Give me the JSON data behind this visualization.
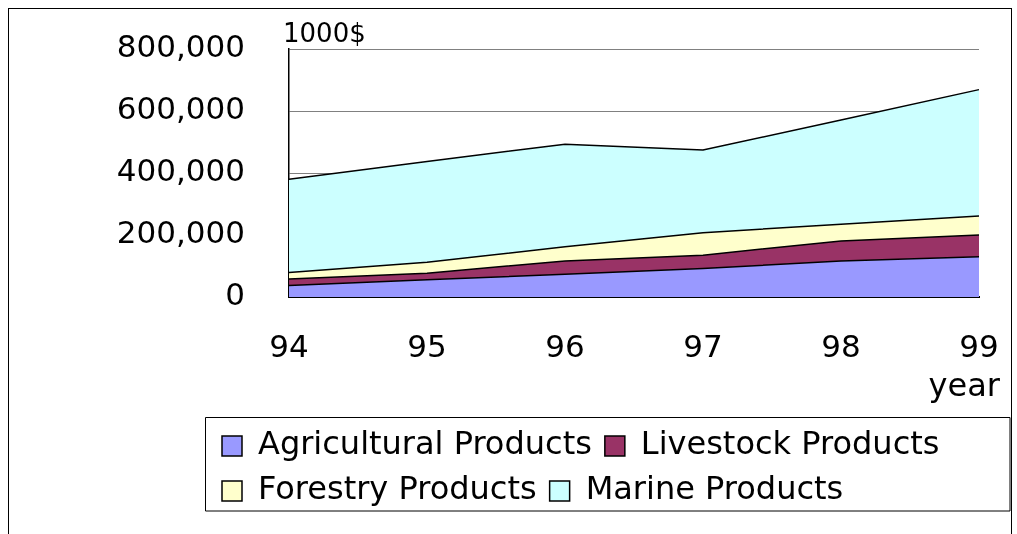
{
  "chart_data": {
    "type": "area",
    "stacked": true,
    "xlabel": "year",
    "ylabel": "1000$",
    "categories": [
      "94",
      "95",
      "96",
      "97",
      "98",
      "99"
    ],
    "series": [
      {
        "name": "Agricultural Products",
        "color": "#9999ff",
        "values": [
          37000,
          56000,
          73000,
          92000,
          116000,
          130000
        ]
      },
      {
        "name": "Livestock Products",
        "color": "#993366",
        "values": [
          21000,
          21000,
          43000,
          43000,
          65000,
          70000
        ]
      },
      {
        "name": "Forestry Products",
        "color": "#ffffcc",
        "values": [
          21000,
          35000,
          46000,
          72000,
          54000,
          61000
        ]
      },
      {
        "name": "Marine Products",
        "color": "#ccffff",
        "values": [
          301000,
          325000,
          331000,
          267000,
          336000,
          408000
        ]
      }
    ],
    "ylim": [
      0,
      800000
    ],
    "yticks": [
      0,
      {
        "value": 200000,
        "label": "200,000"
      },
      {
        "value": 400000,
        "label": "400,000"
      },
      {
        "value": 600000,
        "label": "600,000"
      },
      {
        "value": 800000,
        "label": "800,000"
      }
    ],
    "grid": "y",
    "legend": "bottom"
  }
}
